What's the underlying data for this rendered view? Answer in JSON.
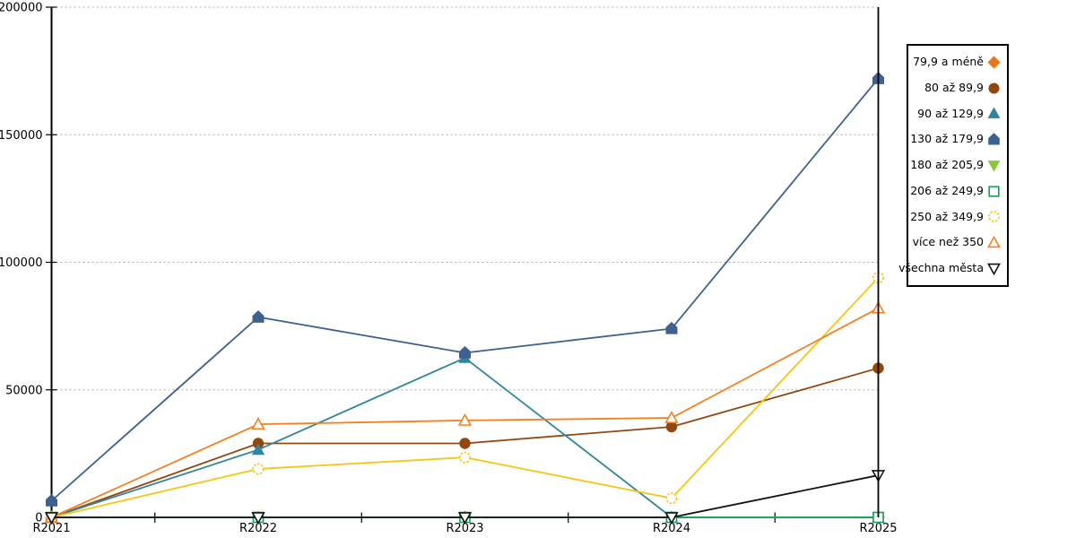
{
  "chart_data": {
    "type": "line",
    "title": "",
    "xlabel": "",
    "ylabel": "",
    "categories": [
      "R2021",
      "R2022",
      "R2023",
      "R2024",
      "R2025"
    ],
    "yticks": [
      0,
      50000,
      100000,
      150000,
      200000
    ],
    "ytick_labels": [
      "0",
      "50000",
      "100000",
      "150000",
      "200000"
    ],
    "ylim": [
      0,
      200000
    ],
    "grid": "horizontal-dotted",
    "legend_position": "right",
    "series": [
      {
        "name": "79,9 a méně",
        "color": "#E8761C",
        "marker": "diamond",
        "filled": true,
        "values": [
          0,
          0,
          0,
          0,
          0
        ]
      },
      {
        "name": "80 až 89,9",
        "color": "#94470D",
        "marker": "circle",
        "filled": true,
        "values": [
          0,
          29000,
          29000,
          35500,
          58500
        ]
      },
      {
        "name": "90 až 129,9",
        "color": "#31859C",
        "marker": "triangle-up",
        "filled": true,
        "values": [
          0,
          26500,
          62500,
          0,
          0
        ]
      },
      {
        "name": "130 až 179,9",
        "color": "#3E618F",
        "marker": "pentagon",
        "filled": true,
        "values": [
          6500,
          78500,
          64500,
          74000,
          172000
        ]
      },
      {
        "name": "180 až 205,9",
        "color": "#8CC63E",
        "marker": "triangle-down",
        "filled": true,
        "values": [
          0,
          0,
          0,
          0,
          0
        ]
      },
      {
        "name": "206 až 249,9",
        "color": "#0FA359",
        "marker": "square",
        "filled": false,
        "values": [
          0,
          0,
          0,
          0,
          0
        ]
      },
      {
        "name": "250 až 349,9",
        "color": "#F5C713",
        "marker": "circle",
        "filled": false,
        "dashed_marker": true,
        "values": [
          0,
          19000,
          23500,
          7500,
          94000
        ]
      },
      {
        "name": "více než 350",
        "color": "#F5801F",
        "marker": "triangle-up",
        "filled": false,
        "values": [
          0,
          36500,
          38000,
          39000,
          82000
        ]
      },
      {
        "name": "všechna města",
        "color": "#141414",
        "marker": "triangle-down",
        "filled": false,
        "values": [
          0,
          0,
          0,
          0,
          16500
        ]
      }
    ]
  },
  "colors": {
    "background": "#FFFFFF",
    "axis": "#000000",
    "gridline": "#ABABAB",
    "legend_border": "#000000"
  }
}
